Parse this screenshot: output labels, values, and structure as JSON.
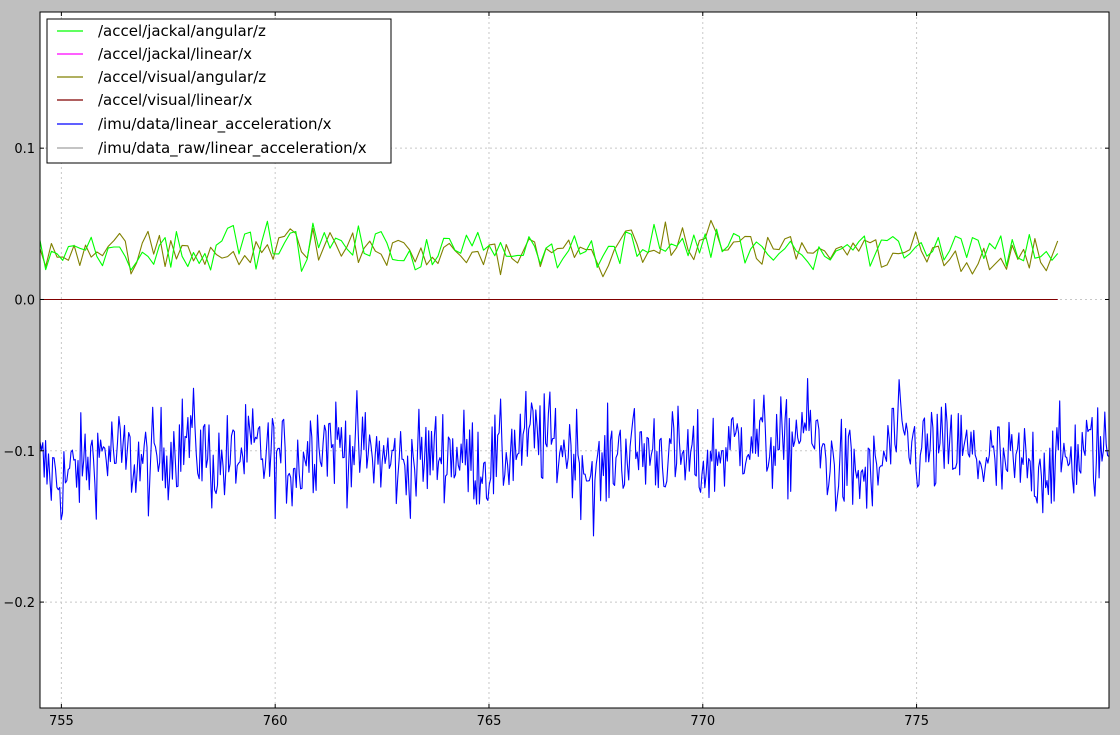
{
  "chart_data": {
    "type": "line",
    "title": "",
    "xlabel": "",
    "ylabel": "",
    "xlim": [
      754.5,
      779.5
    ],
    "ylim": [
      -0.27,
      0.19
    ],
    "grid": true,
    "legend_position": "top-left",
    "x_ticks": [
      755,
      760,
      765,
      770,
      775
    ],
    "x_tick_labels": [
      "755",
      "760",
      "765",
      "770",
      "775"
    ],
    "y_ticks": [
      0.1,
      0.0,
      -0.1,
      -0.2
    ],
    "y_tick_labels": [
      "0.1",
      "0.0",
      "−0.1",
      "−0.2"
    ],
    "series": [
      {
        "name": "/accel/jackal/angular/z",
        "color": "#00ff00",
        "x_range": [
          754.5,
          778.3
        ],
        "count": 180,
        "center": 0.034,
        "noise": 0.007,
        "x": [
          754.5,
          756.0,
          757.5,
          759.0,
          760.5,
          762.0,
          763.5,
          765.0,
          766.5,
          767.5,
          768.5,
          770.0,
          771.5,
          773.0,
          774.5,
          776.0,
          777.0,
          778.3
        ],
        "values": [
          0.031,
          0.034,
          0.032,
          0.038,
          0.036,
          0.035,
          0.03,
          0.036,
          0.034,
          0.031,
          0.033,
          0.038,
          0.035,
          0.033,
          0.036,
          0.037,
          0.034,
          0.032
        ]
      },
      {
        "name": "/accel/jackal/linear/x",
        "color": "#ff00ff",
        "x": [
          754.5,
          778.3
        ],
        "values": [
          0.0,
          0.0
        ]
      },
      {
        "name": "/accel/visual/angular/z",
        "color": "#808000",
        "x_range": [
          754.5,
          778.3
        ],
        "count": 180,
        "center": 0.032,
        "noise": 0.007,
        "x": [
          754.5,
          756.0,
          757.5,
          759.0,
          760.5,
          762.0,
          763.5,
          765.0,
          766.5,
          767.5,
          768.5,
          770.0,
          771.5,
          773.0,
          774.5,
          776.0,
          777.0,
          778.3
        ],
        "values": [
          0.033,
          0.035,
          0.03,
          0.033,
          0.037,
          0.034,
          0.029,
          0.031,
          0.03,
          0.031,
          0.032,
          0.04,
          0.034,
          0.032,
          0.03,
          0.028,
          0.026,
          0.032
        ]
      },
      {
        "name": "/accel/visual/linear/x",
        "color": "#800000",
        "x": [
          754.5,
          778.3
        ],
        "values": [
          0.0,
          0.0
        ]
      },
      {
        "name": "/imu/data/linear_acceleration/x",
        "color": "#0000ff",
        "x_range": [
          754.5,
          779.5
        ],
        "count": 760,
        "center": -0.103,
        "noise": 0.016,
        "x": [
          754.5,
          755.0,
          756.0,
          757.0,
          758.0,
          758.6,
          759.5,
          760.5,
          761.0,
          762.0,
          763.0,
          764.0,
          765.0,
          766.0,
          767.0,
          767.5,
          768.0,
          769.0,
          770.0,
          771.0,
          772.0,
          772.3,
          773.0,
          774.0,
          774.5,
          775.0,
          776.0,
          777.0,
          778.0,
          779.0,
          779.5
        ],
        "values": [
          -0.11,
          -0.12,
          -0.1,
          -0.11,
          -0.09,
          -0.11,
          -0.1,
          -0.11,
          -0.09,
          -0.1,
          -0.11,
          -0.1,
          -0.11,
          -0.09,
          -0.1,
          -0.12,
          -0.1,
          -0.1,
          -0.11,
          -0.09,
          -0.1,
          -0.08,
          -0.11,
          -0.12,
          -0.09,
          -0.1,
          -0.1,
          -0.11,
          -0.11,
          -0.1,
          -0.1
        ]
      },
      {
        "name": "/imu/data_raw/linear_acceleration/x",
        "color": "#a0a0a0",
        "x": [],
        "values": []
      }
    ]
  }
}
